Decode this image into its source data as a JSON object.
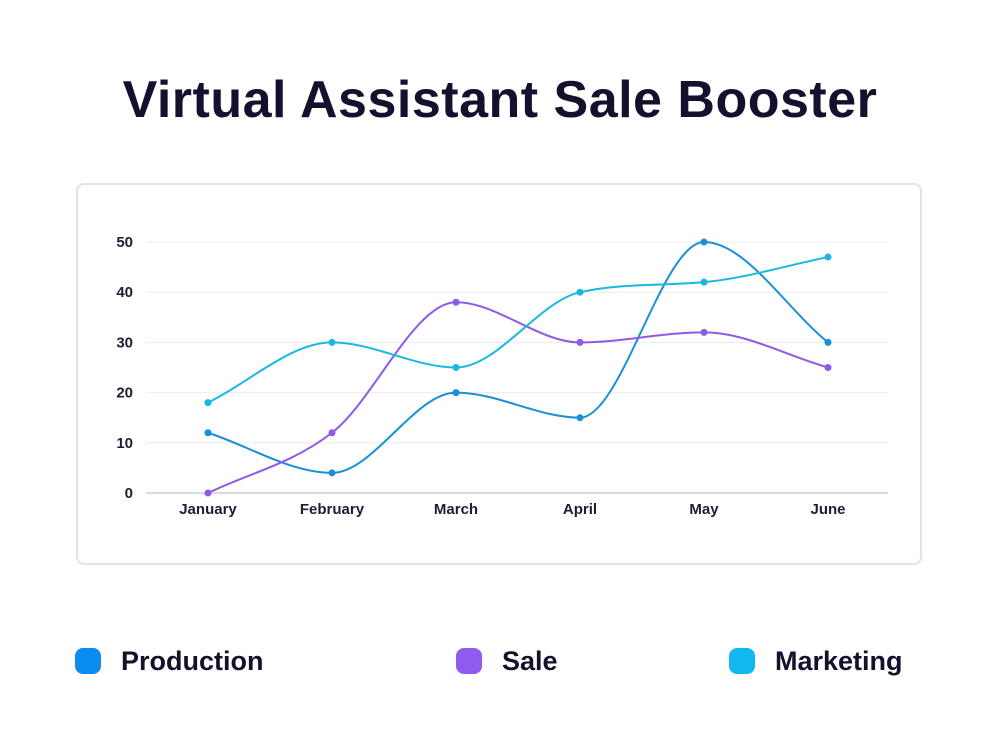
{
  "chart_data": {
    "type": "line",
    "title": "Virtual Assistant Sale Booster",
    "categories": [
      "January",
      "February",
      "March",
      "April",
      "May",
      "June"
    ],
    "ylim": [
      0,
      50
    ],
    "yticks": [
      0,
      10,
      20,
      30,
      40,
      50
    ],
    "grid": true,
    "legend_position": "bottom",
    "series": [
      {
        "name": "Production",
        "values": [
          12,
          4,
          20,
          15,
          50,
          30
        ],
        "color": "#1a8fd8",
        "swatch_color": "#0a8cf0"
      },
      {
        "name": "Sale",
        "values": [
          0,
          12,
          38,
          30,
          32,
          25
        ],
        "color": "#8e5ae8",
        "swatch_color": "#8e5af0"
      },
      {
        "name": "Marketing",
        "values": [
          18,
          30,
          25,
          40,
          42,
          47
        ],
        "color": "#1ab8e0",
        "swatch_color": "#12b8f2"
      }
    ]
  }
}
